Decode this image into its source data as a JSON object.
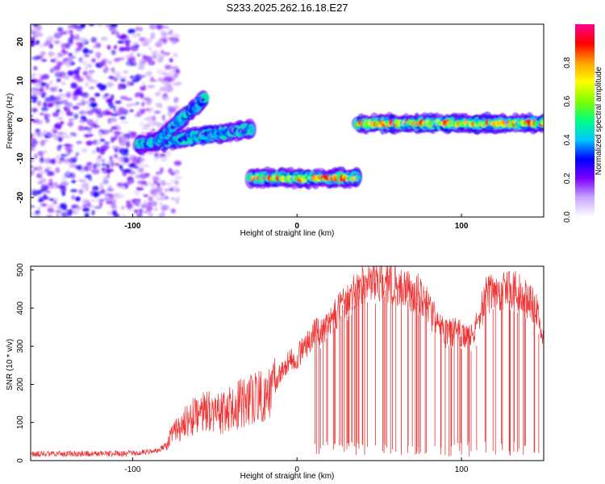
{
  "figure_title": "S233.2025.262.16.18.E27",
  "chart_data": [
    {
      "type": "heatmap",
      "title": "S233.2025.262.16.18.E27",
      "xlabel": "Height of straight line (km)",
      "ylabel": "Frequency (Hz)",
      "xlim": [
        -162,
        150
      ],
      "ylim": [
        -25,
        24.5
      ],
      "xticks": [
        -100,
        0,
        100
      ],
      "yticks": [
        -20,
        -10,
        0,
        10,
        20
      ],
      "colorbar": {
        "label": "Normalized spectral amplitude",
        "range": [
          0,
          1
        ],
        "ticks": [
          0.0,
          0.2,
          0.4,
          0.6,
          0.8
        ],
        "colors": [
          "#ffffff",
          "#c9a8ff",
          "#7a00ff",
          "#0000ff",
          "#00c8ff",
          "#00ff80",
          "#80ff00",
          "#ffff00",
          "#ffa000",
          "#ff0000",
          "#ff0090"
        ]
      },
      "noise_region": {
        "x_range": [
          -162,
          -80
        ],
        "freq_range": [
          -25,
          24.5
        ],
        "amplitude_range": [
          0.05,
          0.3
        ]
      },
      "segments": [
        {
          "name": "rising segment",
          "x_range": [
            -97,
            -28
          ],
          "freq_start": -6.5,
          "freq_end": -2.5,
          "peak_amplitude": 0.5,
          "branch": {
            "x": -56,
            "freq": 5.5
          }
        },
        {
          "name": "low segment",
          "x_range": [
            -28,
            37
          ],
          "freq": -15,
          "peak_amplitude": 0.95
        },
        {
          "name": "high segment",
          "x_range": [
            37,
            150
          ],
          "freq": -1,
          "peak_amplitude": 0.95
        }
      ]
    },
    {
      "type": "line",
      "xlabel": "Height of straight line (km)",
      "ylabel": "SNR (10 * v/v)",
      "xlim": [
        -162,
        150
      ],
      "ylim": [
        0,
        510
      ],
      "xticks": [
        -100,
        0,
        100
      ],
      "yticks": [
        0,
        100,
        200,
        300,
        400,
        500
      ],
      "color": "#ee3333",
      "series": [
        {
          "name": "SNR",
          "x": [
            -162,
            -140,
            -120,
            -100,
            -85,
            -80,
            -75,
            -65,
            -55,
            -45,
            -35,
            -25,
            -15,
            -10,
            -5,
            0,
            5,
            10,
            15,
            20,
            25,
            30,
            35,
            40,
            45,
            50,
            55,
            60,
            65,
            70,
            75,
            80,
            85,
            90,
            95,
            100,
            105,
            110,
            115,
            120,
            125,
            130,
            135,
            140,
            145,
            150
          ],
          "y": [
            18,
            18,
            18,
            20,
            25,
            40,
            70,
            110,
            130,
            125,
            150,
            170,
            185,
            230,
            260,
            270,
            300,
            330,
            345,
            360,
            390,
            420,
            440,
            460,
            465,
            470,
            470,
            460,
            450,
            440,
            440,
            400,
            360,
            330,
            340,
            330,
            320,
            360,
            430,
            450,
            445,
            450,
            440,
            420,
            400,
            330
          ]
        }
      ],
      "dropout_count": 95,
      "dropout_range": [
        8,
        148
      ]
    }
  ]
}
